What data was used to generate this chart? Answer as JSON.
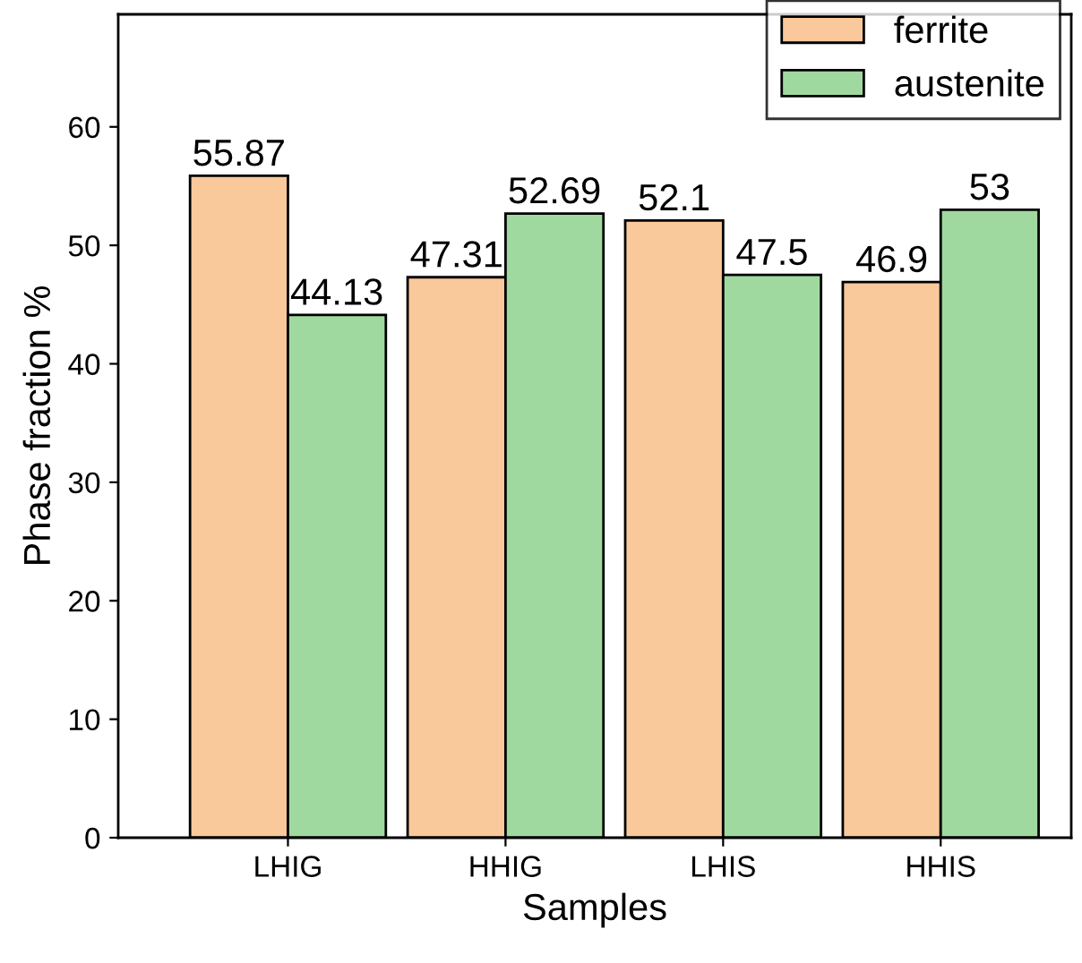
{
  "chart_data": {
    "type": "bar",
    "xlabel": "Samples",
    "ylabel": "Phase fraction %",
    "categories": [
      "LHIG",
      "HHIG",
      "LHIS",
      "HHIS"
    ],
    "series": [
      {
        "name": "ferrite",
        "color": "#f9c89b",
        "values": [
          55.87,
          47.31,
          52.1,
          46.9
        ]
      },
      {
        "name": "austenite",
        "color": "#a0d99f",
        "values": [
          44.13,
          52.69,
          47.5,
          53
        ]
      }
    ],
    "ylim": [
      0,
      69.5
    ],
    "yticks": [
      0,
      10,
      20,
      30,
      40,
      50,
      60
    ],
    "data_labels": true,
    "legend": "top right",
    "grid": false
  }
}
